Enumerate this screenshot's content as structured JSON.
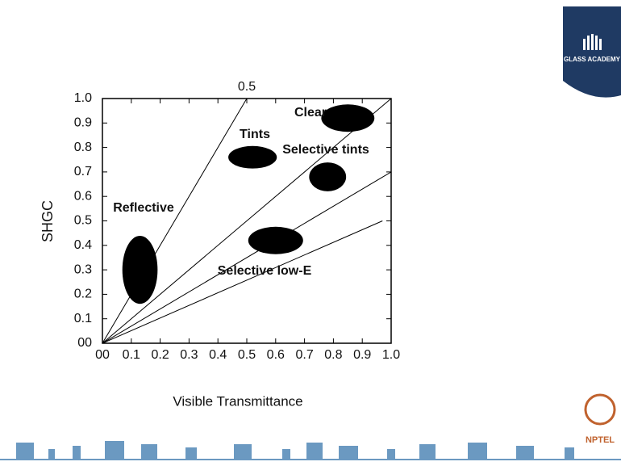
{
  "chart_data": {
    "type": "region",
    "x_label": "Visible Transmittance",
    "y_label": "SHGC",
    "xlim": [
      0,
      1.0
    ],
    "ylim": [
      0,
      1.0
    ],
    "xticks": [
      {
        "value": 0,
        "label": "00"
      },
      0.1,
      0.2,
      0.3,
      0.4,
      0.5,
      0.6,
      0.7,
      0.8,
      0.9,
      {
        "value": 1.0,
        "label": "1.0"
      }
    ],
    "yticks": [
      {
        "value": 0,
        "label": "00"
      },
      0.1,
      0.2,
      0.3,
      0.4,
      0.5,
      0.6,
      0.7,
      0.8,
      0.9,
      {
        "value": 1.0,
        "label": "1.0"
      }
    ],
    "lines": [
      {
        "label": "0.5",
        "x": [
          0,
          0.5
        ],
        "y": [
          0,
          1.0
        ]
      },
      {
        "x": [
          0,
          1.0
        ],
        "y": [
          0,
          1.0
        ]
      },
      {
        "x": [
          0,
          1.0
        ],
        "y": [
          0,
          0.7
        ]
      },
      {
        "x": [
          0,
          0.97
        ],
        "y": [
          0,
          0.5
        ]
      }
    ],
    "regions": [
      {
        "name": "Clear",
        "x": 0.85,
        "y": 0.92,
        "rx": 0.092,
        "ry": 0.056
      },
      {
        "name": "Tints",
        "x": 0.52,
        "y": 0.76,
        "rx": 0.084,
        "ry": 0.046
      },
      {
        "name": "Selective tints",
        "x": 0.78,
        "y": 0.68,
        "rx": 0.064,
        "ry": 0.059
      },
      {
        "name": "Selective low-E",
        "x": 0.6,
        "y": 0.42,
        "rx": 0.095,
        "ry": 0.056
      },
      {
        "name": "Reflective",
        "x": 0.13,
        "y": 0.3,
        "rx": 0.061,
        "ry": 0.139
      }
    ],
    "color": "#000000"
  },
  "slide": {
    "badge": "GLASS ACADEMY",
    "logo": "NPTEL"
  }
}
